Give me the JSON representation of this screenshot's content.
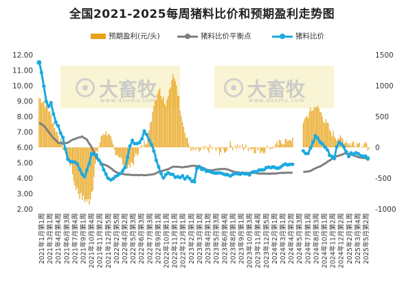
{
  "title": "全国2021-2025每周猪料比价和预期盈利走势图",
  "legend": {
    "bar_label": "预期盈利(元/头)",
    "line1_label": "猪料比价平衡点",
    "line2_label": "猪料比价"
  },
  "watermark": {
    "logo_text": "大畜牧",
    "url_text": "www.dxumu.com"
  },
  "colors": {
    "bar": "#E8A317",
    "breakeven": "#7F7F7F",
    "ratio": "#1CA9E0"
  },
  "chart_data": {
    "type": "bar+line",
    "left_axis": {
      "min": 2,
      "max": 12,
      "step": 1,
      "ticks": [
        "2.00",
        "3.00",
        "4.00",
        "5.00",
        "6.00",
        "7.00",
        "8.00",
        "9.00",
        "10.00",
        "11.00",
        "12.00"
      ]
    },
    "right_axis": {
      "min": -1000,
      "max": 1500,
      "step": 500,
      "ticks": [
        "-1000",
        "-500",
        "0",
        "500",
        "1000",
        "1500"
      ]
    },
    "x_labels": [
      "2021年1月第1周",
      "2021年3月第1周",
      "2021年4月第4周",
      "2021年6月第3周",
      "2021年7月第4周",
      "2021年9月第1周",
      "2021年10月第4周",
      "2021年11月第2周",
      "2021年12月第5周",
      "2022年2月第5周",
      "2022年4月第2周",
      "2022年5月第3周",
      "2022年6月第3周",
      "2022年7月第3周",
      "2022年9月第1周",
      "2022年10月第1周",
      "2022年11月第1周",
      "2022年12月第1周",
      "2023年2月第1周",
      "2023年3月第1周",
      "2023年4月第1周",
      "2023年5月第3周",
      "2023年6月第4周",
      "2023年8月第1周",
      "2023年9月第1周",
      "2023年10月第3周",
      "2023年11月第4周",
      "2023年12月第5周",
      "2024年2月第1周",
      "2024年3月第1周",
      "2024年4月第2周",
      "2024年5月第3周",
      "2024年7月第1周",
      "2024年8月第3周",
      "2024年10月第1周",
      "2024年11月第2周",
      "2024年12月第2周",
      "2025年2月第1周",
      "2025年3月第4周",
      "2025年5月第2周"
    ],
    "gap_categories": [],
    "profit_anchors": [
      [
        0,
        800
      ],
      [
        4,
        750
      ],
      [
        9,
        550
      ],
      [
        14,
        300
      ],
      [
        18,
        80
      ],
      [
        22,
        -60
      ],
      [
        26,
        -260
      ],
      [
        30,
        -600
      ],
      [
        34,
        -780
      ],
      [
        38,
        -850
      ],
      [
        42,
        -880
      ],
      [
        45,
        -640
      ],
      [
        48,
        -120
      ],
      [
        51,
        90
      ],
      [
        54,
        250
      ],
      [
        57,
        220
      ],
      [
        60,
        120
      ],
      [
        63,
        -40
      ],
      [
        67,
        -150
      ],
      [
        71,
        -280
      ],
      [
        75,
        -350
      ],
      [
        79,
        -240
      ],
      [
        83,
        -60
      ],
      [
        87,
        40
      ],
      [
        90,
        110
      ],
      [
        93,
        350
      ],
      [
        96,
        700
      ],
      [
        100,
        950
      ],
      [
        103,
        850
      ],
      [
        106,
        720
      ],
      [
        109,
        900
      ],
      [
        112,
        1130
      ],
      [
        115,
        1020
      ],
      [
        118,
        660
      ],
      [
        121,
        320
      ],
      [
        124,
        100
      ],
      [
        128,
        -40
      ],
      [
        132,
        -80
      ],
      [
        136,
        -40
      ],
      [
        140,
        -40
      ],
      [
        144,
        -10
      ],
      [
        148,
        -50
      ],
      [
        152,
        -70
      ],
      [
        156,
        -30
      ],
      [
        160,
        30
      ],
      [
        164,
        10
      ],
      [
        168,
        20
      ],
      [
        172,
        -10
      ],
      [
        176,
        0
      ],
      [
        180,
        -30
      ],
      [
        184,
        -50
      ],
      [
        188,
        -40
      ],
      [
        192,
        -10
      ],
      [
        196,
        20
      ],
      [
        200,
        50
      ],
      [
        204,
        90
      ],
      [
        208,
        130
      ],
      [
        212,
        160
      ],
      [
        213,
        null
      ],
      [
        214,
        null
      ],
      [
        215,
        null
      ],
      [
        216,
        null
      ],
      [
        217,
        null
      ],
      [
        218,
        null
      ],
      [
        219,
        null
      ],
      [
        220,
        null
      ],
      [
        221,
        380
      ],
      [
        224,
        500
      ],
      [
        228,
        610
      ],
      [
        232,
        660
      ],
      [
        236,
        550
      ],
      [
        240,
        400
      ],
      [
        244,
        260
      ],
      [
        248,
        180
      ],
      [
        252,
        150
      ],
      [
        256,
        120
      ],
      [
        260,
        60
      ],
      [
        264,
        80
      ],
      [
        268,
        60
      ],
      [
        272,
        40
      ],
      [
        276,
        -20
      ]
    ],
    "breakeven_anchors": [
      [
        0,
        7.6
      ],
      [
        4,
        7.4
      ],
      [
        8,
        7.0
      ],
      [
        12,
        6.6
      ],
      [
        16,
        6.3
      ],
      [
        20,
        6.25
      ],
      [
        24,
        6.3
      ],
      [
        28,
        6.5
      ],
      [
        32,
        6.6
      ],
      [
        36,
        6.7
      ],
      [
        40,
        6.5
      ],
      [
        44,
        6.0
      ],
      [
        48,
        5.3
      ],
      [
        52,
        4.95
      ],
      [
        56,
        4.85
      ],
      [
        60,
        4.65
      ],
      [
        64,
        4.4
      ],
      [
        68,
        4.3
      ],
      [
        72,
        4.25
      ],
      [
        80,
        4.2
      ],
      [
        90,
        4.2
      ],
      [
        96,
        4.25
      ],
      [
        100,
        4.4
      ],
      [
        104,
        4.5
      ],
      [
        108,
        4.6
      ],
      [
        112,
        4.75
      ],
      [
        116,
        4.75
      ],
      [
        120,
        4.7
      ],
      [
        124,
        4.75
      ],
      [
        128,
        4.8
      ],
      [
        132,
        4.8
      ],
      [
        136,
        4.7
      ],
      [
        140,
        4.55
      ],
      [
        144,
        4.5
      ],
      [
        148,
        4.55
      ],
      [
        152,
        4.6
      ],
      [
        156,
        4.6
      ],
      [
        160,
        4.5
      ],
      [
        164,
        4.4
      ],
      [
        168,
        4.35
      ],
      [
        172,
        4.35
      ],
      [
        176,
        4.35
      ],
      [
        180,
        4.35
      ],
      [
        184,
        4.3
      ],
      [
        188,
        4.3
      ],
      [
        196,
        4.3
      ],
      [
        204,
        4.35
      ],
      [
        212,
        4.35
      ],
      [
        213,
        null
      ],
      [
        214,
        null
      ],
      [
        215,
        null
      ],
      [
        216,
        null
      ],
      [
        217,
        null
      ],
      [
        218,
        null
      ],
      [
        219,
        null
      ],
      [
        220,
        null
      ],
      [
        221,
        4.4
      ],
      [
        226,
        4.45
      ],
      [
        230,
        4.6
      ],
      [
        236,
        4.8
      ],
      [
        242,
        5.1
      ],
      [
        248,
        5.4
      ],
      [
        252,
        5.5
      ],
      [
        256,
        5.6
      ],
      [
        260,
        5.55
      ],
      [
        264,
        5.45
      ],
      [
        268,
        5.35
      ],
      [
        272,
        5.3
      ],
      [
        276,
        5.25
      ]
    ],
    "ratio_anchors": [
      [
        0,
        11.5
      ],
      [
        2,
        10.9
      ],
      [
        4,
        10.0
      ],
      [
        6,
        9.0
      ],
      [
        8,
        8.6
      ],
      [
        10,
        8.9
      ],
      [
        12,
        8.2
      ],
      [
        14,
        7.6
      ],
      [
        16,
        7.4
      ],
      [
        18,
        6.9
      ],
      [
        20,
        6.6
      ],
      [
        22,
        5.9
      ],
      [
        24,
        5.2
      ],
      [
        26,
        5.1
      ],
      [
        28,
        5.05
      ],
      [
        30,
        5.0
      ],
      [
        32,
        4.9
      ],
      [
        34,
        4.6
      ],
      [
        36,
        4.3
      ],
      [
        38,
        4.05
      ],
      [
        40,
        4.5
      ],
      [
        42,
        5.0
      ],
      [
        44,
        5.6
      ],
      [
        46,
        5.6
      ],
      [
        48,
        5.5
      ],
      [
        50,
        5.2
      ],
      [
        52,
        4.9
      ],
      [
        54,
        4.6
      ],
      [
        56,
        4.2
      ],
      [
        58,
        3.95
      ],
      [
        60,
        3.85
      ],
      [
        62,
        3.95
      ],
      [
        64,
        4.1
      ],
      [
        66,
        4.25
      ],
      [
        68,
        4.3
      ],
      [
        70,
        4.5
      ],
      [
        72,
        4.75
      ],
      [
        74,
        5.3
      ],
      [
        76,
        6.1
      ],
      [
        78,
        6.4
      ],
      [
        80,
        6.3
      ],
      [
        82,
        6.2
      ],
      [
        84,
        6.35
      ],
      [
        86,
        6.6
      ],
      [
        88,
        7.1
      ],
      [
        90,
        6.8
      ],
      [
        92,
        6.5
      ],
      [
        94,
        6.2
      ],
      [
        96,
        5.8
      ],
      [
        98,
        5.2
      ],
      [
        100,
        4.7
      ],
      [
        102,
        4.3
      ],
      [
        104,
        4.0
      ],
      [
        106,
        4.2
      ],
      [
        108,
        4.4
      ],
      [
        110,
        4.3
      ],
      [
        112,
        4.25
      ],
      [
        114,
        4.1
      ],
      [
        116,
        4.05
      ],
      [
        118,
        4.1
      ],
      [
        120,
        4.1
      ],
      [
        122,
        4.0
      ],
      [
        124,
        4.05
      ],
      [
        126,
        3.95
      ],
      [
        128,
        3.85
      ],
      [
        130,
        3.8
      ],
      [
        132,
        4.6
      ],
      [
        134,
        4.7
      ],
      [
        136,
        4.6
      ],
      [
        140,
        4.5
      ],
      [
        144,
        4.4
      ],
      [
        148,
        4.3
      ],
      [
        152,
        4.3
      ],
      [
        156,
        4.25
      ],
      [
        160,
        4.2
      ],
      [
        164,
        4.3
      ],
      [
        168,
        4.25
      ],
      [
        172,
        4.3
      ],
      [
        176,
        4.25
      ],
      [
        180,
        4.4
      ],
      [
        184,
        4.5
      ],
      [
        188,
        4.6
      ],
      [
        192,
        4.7
      ],
      [
        196,
        4.75
      ],
      [
        200,
        4.7
      ],
      [
        204,
        4.85
      ],
      [
        208,
        4.9
      ],
      [
        212,
        4.9
      ],
      [
        213,
        null
      ],
      [
        214,
        null
      ],
      [
        215,
        null
      ],
      [
        216,
        null
      ],
      [
        217,
        null
      ],
      [
        218,
        null
      ],
      [
        219,
        null
      ],
      [
        220,
        null
      ],
      [
        221,
        5.8
      ],
      [
        223,
        5.6
      ],
      [
        225,
        5.6
      ],
      [
        227,
        5.9
      ],
      [
        229,
        6.3
      ],
      [
        231,
        6.7
      ],
      [
        233,
        6.6
      ],
      [
        235,
        6.3
      ],
      [
        237,
        6.2
      ],
      [
        239,
        6.05
      ],
      [
        241,
        5.9
      ],
      [
        243,
        5.5
      ],
      [
        245,
        5.4
      ],
      [
        247,
        5.3
      ],
      [
        249,
        6.0
      ],
      [
        251,
        6.3
      ],
      [
        253,
        6.25
      ],
      [
        255,
        6.0
      ],
      [
        257,
        5.7
      ],
      [
        259,
        5.4
      ],
      [
        261,
        5.6
      ],
      [
        263,
        5.5
      ],
      [
        265,
        5.7
      ],
      [
        267,
        5.55
      ],
      [
        269,
        5.45
      ],
      [
        271,
        5.4
      ],
      [
        273,
        5.4
      ],
      [
        275,
        5.3
      ],
      [
        276,
        5.4
      ]
    ],
    "total_weeks": 277
  }
}
